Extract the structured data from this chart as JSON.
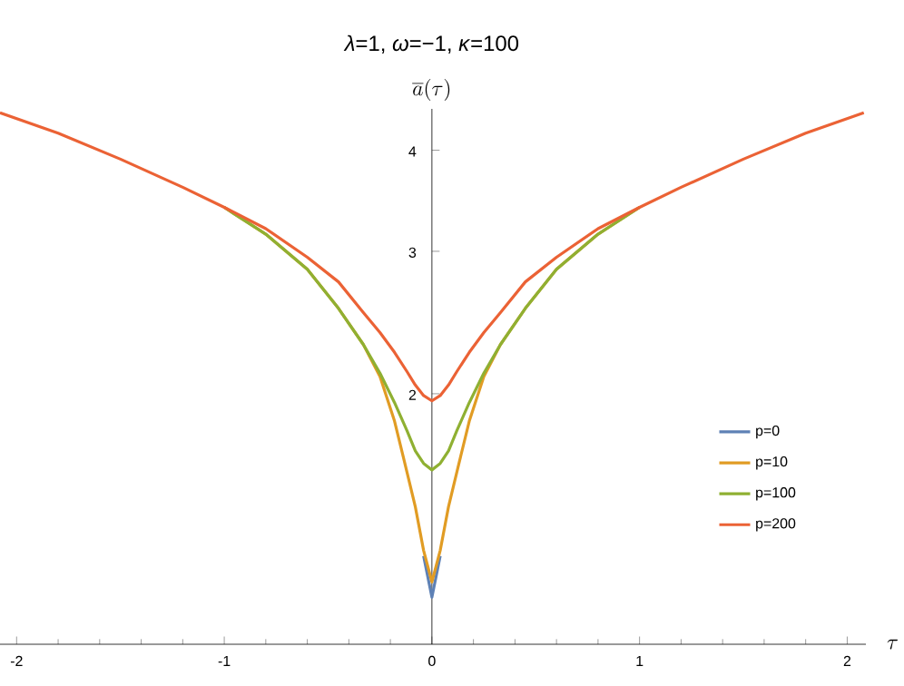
{
  "chart_data": {
    "type": "line",
    "title": "*λ*=1, *ω*=−1, *κ*=100",
    "ylabel": "\\overline{a}(\\tau)",
    "xlabel": "\\tau",
    "x": [
      -2.08,
      -1.8,
      -1.5,
      -1.2,
      -1.0,
      -0.8,
      -0.6,
      -0.45,
      -0.33,
      -0.25,
      -0.18,
      -0.12,
      -0.08,
      -0.04,
      0,
      0.04,
      0.08,
      0.12,
      0.18,
      0.25,
      0.33,
      0.45,
      0.6,
      0.8,
      1.0,
      1.2,
      1.5,
      1.8,
      2.08
    ],
    "series": [
      {
        "name": "p=0",
        "color": "#5e81b5",
        "values": [
          null,
          null,
          null,
          null,
          null,
          null,
          null,
          null,
          null,
          null,
          null,
          null,
          null,
          1.26,
          1.12,
          1.26,
          null,
          null,
          null,
          null,
          null,
          null,
          null,
          null,
          null,
          null,
          null,
          null,
          null
        ]
      },
      {
        "name": "p=10",
        "color": "#e19c24",
        "values": [
          null,
          null,
          null,
          null,
          3.4,
          3.15,
          2.85,
          2.55,
          2.3,
          2.1,
          1.85,
          1.6,
          1.45,
          1.28,
          1.17,
          1.28,
          1.45,
          1.6,
          1.85,
          2.1,
          2.3,
          2.55,
          2.85,
          3.15,
          3.4,
          null,
          null,
          null,
          null
        ]
      },
      {
        "name": "p=100",
        "color": "#8fb032",
        "values": [
          null,
          null,
          null,
          null,
          3.4,
          3.15,
          2.85,
          2.55,
          2.3,
          2.12,
          1.95,
          1.8,
          1.7,
          1.64,
          1.61,
          1.64,
          1.7,
          1.8,
          1.95,
          2.12,
          2.3,
          2.55,
          2.85,
          3.15,
          3.4,
          null,
          null,
          null,
          null
        ]
      },
      {
        "name": "p=200",
        "color": "#eb6235",
        "values": [
          4.45,
          4.2,
          3.9,
          3.6,
          3.4,
          3.2,
          2.95,
          2.75,
          2.52,
          2.38,
          2.25,
          2.13,
          2.05,
          1.99,
          1.96,
          1.99,
          2.05,
          2.13,
          2.25,
          2.38,
          2.52,
          2.75,
          2.95,
          3.2,
          3.4,
          3.6,
          3.9,
          4.2,
          4.45
        ]
      }
    ],
    "xlim": [
      -2.08,
      2.09
    ],
    "ylim": [
      0.98,
      4.5
    ],
    "log": "y",
    "legend": "right",
    "xticks": [
      -2,
      -1,
      0,
      1,
      2
    ],
    "yticks": [
      2,
      3,
      4
    ]
  }
}
